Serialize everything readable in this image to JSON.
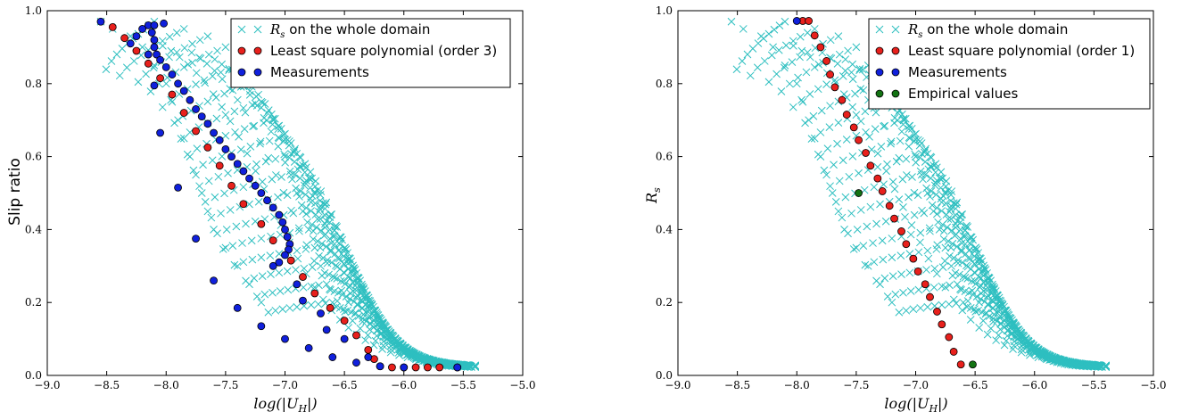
{
  "colors": {
    "cyan": "#2ebfc0",
    "red": "#e8201c",
    "blue": "#1020dc",
    "green": "#137313"
  },
  "chart_data": [
    {
      "type": "scatter",
      "xlabel": "log(|U_H|)",
      "ylabel": "Slip ratio",
      "xlim": [
        -9.0,
        -5.0
      ],
      "ylim": [
        0.0,
        1.0
      ],
      "xticks": [
        "-9.0",
        "-8.5",
        "-8.0",
        "-7.5",
        "-7.0",
        "-6.5",
        "-6.0",
        "-5.5",
        "-5.0"
      ],
      "yticks": [
        "0.0",
        "0.2",
        "0.4",
        "0.6",
        "0.8",
        "1.0"
      ],
      "legend": {
        "position": "top-right",
        "entries": [
          "R_s on the whole domain",
          "Least square polynomial (order 3)",
          "Measurements"
        ]
      },
      "series": [
        {
          "name": "R_s on the whole domain",
          "marker": "x",
          "color": "#2ebfc0",
          "curves": [
            {
              "x_left": -8.55,
              "x_knee": -8.1,
              "y_top": 0.97,
              "x_end": -5.4
            },
            {
              "x_left": -8.45,
              "x_knee": -7.85,
              "y_top": 0.95,
              "x_end": -5.4
            },
            {
              "x_left": -8.3,
              "x_knee": -7.65,
              "y_top": 0.93,
              "x_end": -5.4
            },
            {
              "x_left": -8.2,
              "x_knee": -7.5,
              "y_top": 0.9,
              "x_end": -5.4
            },
            {
              "x_left": -8.1,
              "x_knee": -7.4,
              "y_top": 0.85,
              "x_end": -5.4
            },
            {
              "x_left": -8.0,
              "x_knee": -7.3,
              "y_top": 0.8,
              "x_end": -5.4
            },
            {
              "x_left": -7.95,
              "x_knee": -7.2,
              "y_top": 0.75,
              "x_end": -5.4
            },
            {
              "x_left": -7.9,
              "x_knee": -7.1,
              "y_top": 0.7,
              "x_end": -5.4
            },
            {
              "x_left": -7.85,
              "x_knee": -7.05,
              "y_top": 0.65,
              "x_end": -5.4
            },
            {
              "x_left": -7.8,
              "x_knee": -7.0,
              "y_top": 0.6,
              "x_end": -5.4
            },
            {
              "x_left": -7.75,
              "x_knee": -6.95,
              "y_top": 0.55,
              "x_end": -5.4
            },
            {
              "x_left": -7.7,
              "x_knee": -6.9,
              "y_top": 0.5,
              "x_end": -5.4
            },
            {
              "x_left": -7.65,
              "x_knee": -6.85,
              "y_top": 0.45,
              "x_end": -5.4
            },
            {
              "x_left": -7.6,
              "x_knee": -6.8,
              "y_top": 0.4,
              "x_end": -5.4
            },
            {
              "x_left": -7.5,
              "x_knee": -6.75,
              "y_top": 0.35,
              "x_end": -5.4
            },
            {
              "x_left": -7.4,
              "x_knee": -6.7,
              "y_top": 0.3,
              "x_end": -5.4
            },
            {
              "x_left": -7.3,
              "x_knee": -6.65,
              "y_top": 0.25,
              "x_end": -5.4
            },
            {
              "x_left": -7.2,
              "x_knee": -6.6,
              "y_top": 0.2,
              "x_end": -5.4
            }
          ]
        },
        {
          "name": "Least square polynomial (order 3)",
          "marker": "o",
          "color": "#e8201c",
          "points": [
            [
              -8.45,
              0.955
            ],
            [
              -8.35,
              0.925
            ],
            [
              -8.25,
              0.89
            ],
            [
              -8.15,
              0.855
            ],
            [
              -8.05,
              0.815
            ],
            [
              -7.95,
              0.77
            ],
            [
              -7.85,
              0.72
            ],
            [
              -7.75,
              0.67
            ],
            [
              -7.65,
              0.625
            ],
            [
              -7.55,
              0.575
            ],
            [
              -7.45,
              0.52
            ],
            [
              -7.35,
              0.47
            ],
            [
              -7.2,
              0.415
            ],
            [
              -7.1,
              0.37
            ],
            [
              -6.95,
              0.315
            ],
            [
              -6.85,
              0.27
            ],
            [
              -6.75,
              0.225
            ],
            [
              -6.62,
              0.185
            ],
            [
              -6.5,
              0.15
            ],
            [
              -6.4,
              0.11
            ],
            [
              -6.3,
              0.07
            ],
            [
              -6.25,
              0.045
            ],
            [
              -6.2,
              0.025
            ],
            [
              -6.1,
              0.022
            ],
            [
              -6.0,
              0.022
            ],
            [
              -5.9,
              0.022
            ],
            [
              -5.8,
              0.022
            ],
            [
              -5.7,
              0.022
            ],
            [
              -5.55,
              0.022
            ]
          ]
        },
        {
          "name": "Measurements",
          "marker": "o",
          "color": "#1020dc",
          "points": [
            [
              -8.55,
              0.97
            ],
            [
              -8.15,
              0.96
            ],
            [
              -8.12,
              0.94
            ],
            [
              -8.1,
              0.92
            ],
            [
              -8.1,
              0.9
            ],
            [
              -8.08,
              0.88
            ],
            [
              -8.05,
              0.865
            ],
            [
              -8.0,
              0.845
            ],
            [
              -7.95,
              0.825
            ],
            [
              -7.9,
              0.8
            ],
            [
              -7.85,
              0.78
            ],
            [
              -7.8,
              0.755
            ],
            [
              -7.75,
              0.73
            ],
            [
              -7.7,
              0.71
            ],
            [
              -7.65,
              0.69
            ],
            [
              -7.6,
              0.665
            ],
            [
              -7.55,
              0.645
            ],
            [
              -7.5,
              0.62
            ],
            [
              -7.45,
              0.6
            ],
            [
              -7.4,
              0.58
            ],
            [
              -7.35,
              0.56
            ],
            [
              -7.3,
              0.54
            ],
            [
              -7.25,
              0.52
            ],
            [
              -7.2,
              0.5
            ],
            [
              -7.15,
              0.48
            ],
            [
              -7.1,
              0.46
            ],
            [
              -7.05,
              0.44
            ],
            [
              -7.02,
              0.42
            ],
            [
              -7.0,
              0.4
            ],
            [
              -6.98,
              0.38
            ],
            [
              -6.96,
              0.36
            ],
            [
              -6.97,
              0.345
            ],
            [
              -7.0,
              0.33
            ],
            [
              -7.05,
              0.31
            ],
            [
              -7.1,
              0.3
            ],
            [
              -8.1,
              0.96
            ],
            [
              -8.02,
              0.965
            ],
            [
              -8.2,
              0.95
            ],
            [
              -8.25,
              0.93
            ],
            [
              -8.3,
              0.91
            ],
            [
              -8.15,
              0.88
            ],
            [
              -8.1,
              0.795
            ],
            [
              -8.05,
              0.665
            ],
            [
              -7.9,
              0.515
            ],
            [
              -7.75,
              0.375
            ],
            [
              -7.6,
              0.26
            ],
            [
              -7.4,
              0.185
            ],
            [
              -7.2,
              0.135
            ],
            [
              -7.0,
              0.1
            ],
            [
              -6.8,
              0.075
            ],
            [
              -6.6,
              0.05
            ],
            [
              -6.4,
              0.035
            ],
            [
              -6.2,
              0.025
            ],
            [
              -6.0,
              0.022
            ],
            [
              -5.55,
              0.022
            ],
            [
              -6.3,
              0.05
            ],
            [
              -6.5,
              0.1
            ],
            [
              -6.7,
              0.17
            ],
            [
              -6.9,
              0.25
            ],
            [
              -6.85,
              0.205
            ],
            [
              -6.65,
              0.125
            ]
          ]
        }
      ]
    },
    {
      "type": "scatter",
      "xlabel": "log(|U_H|)",
      "ylabel": "R_s",
      "xlim": [
        -9.0,
        -5.0
      ],
      "ylim": [
        0.0,
        1.0
      ],
      "xticks": [
        "-9.0",
        "-8.5",
        "-8.0",
        "-7.5",
        "-7.0",
        "-6.5",
        "-6.0",
        "-5.5",
        "-5.0"
      ],
      "yticks": [
        "0.0",
        "0.2",
        "0.4",
        "0.6",
        "0.8",
        "1.0"
      ],
      "legend": {
        "position": "top-right",
        "entries": [
          "R_s on the whole domain",
          "Least square polynomial (order 1)",
          "Measurements",
          "Empirical values"
        ]
      },
      "series": [
        {
          "name": "R_s on the whole domain",
          "marker": "x",
          "color": "#2ebfc0",
          "curves": [
            {
              "x_left": -8.55,
              "x_knee": -8.1,
              "y_top": 0.97,
              "x_end": -5.4
            },
            {
              "x_left": -8.45,
              "x_knee": -7.85,
              "y_top": 0.95,
              "x_end": -5.4
            },
            {
              "x_left": -8.3,
              "x_knee": -7.65,
              "y_top": 0.93,
              "x_end": -5.4
            },
            {
              "x_left": -8.2,
              "x_knee": -7.5,
              "y_top": 0.9,
              "x_end": -5.4
            },
            {
              "x_left": -8.1,
              "x_knee": -7.4,
              "y_top": 0.85,
              "x_end": -5.4
            },
            {
              "x_left": -8.0,
              "x_knee": -7.3,
              "y_top": 0.8,
              "x_end": -5.4
            },
            {
              "x_left": -7.95,
              "x_knee": -7.2,
              "y_top": 0.75,
              "x_end": -5.4
            },
            {
              "x_left": -7.9,
              "x_knee": -7.1,
              "y_top": 0.7,
              "x_end": -5.4
            },
            {
              "x_left": -7.85,
              "x_knee": -7.05,
              "y_top": 0.65,
              "x_end": -5.4
            },
            {
              "x_left": -7.8,
              "x_knee": -7.0,
              "y_top": 0.6,
              "x_end": -5.4
            },
            {
              "x_left": -7.75,
              "x_knee": -6.95,
              "y_top": 0.55,
              "x_end": -5.4
            },
            {
              "x_left": -7.7,
              "x_knee": -6.9,
              "y_top": 0.5,
              "x_end": -5.4
            },
            {
              "x_left": -7.65,
              "x_knee": -6.85,
              "y_top": 0.45,
              "x_end": -5.4
            },
            {
              "x_left": -7.6,
              "x_knee": -6.8,
              "y_top": 0.4,
              "x_end": -5.4
            },
            {
              "x_left": -7.5,
              "x_knee": -6.75,
              "y_top": 0.35,
              "x_end": -5.4
            },
            {
              "x_left": -7.4,
              "x_knee": -6.7,
              "y_top": 0.3,
              "x_end": -5.4
            },
            {
              "x_left": -7.3,
              "x_knee": -6.65,
              "y_top": 0.25,
              "x_end": -5.4
            },
            {
              "x_left": -7.2,
              "x_knee": -6.6,
              "y_top": 0.2,
              "x_end": -5.4
            }
          ]
        },
        {
          "name": "Least square polynomial (order 1)",
          "marker": "o",
          "color": "#e8201c",
          "points": [
            [
              -7.95,
              0.972
            ],
            [
              -7.9,
              0.972
            ],
            [
              -7.85,
              0.932
            ],
            [
              -7.8,
              0.9
            ],
            [
              -7.75,
              0.862
            ],
            [
              -7.72,
              0.825
            ],
            [
              -7.68,
              0.79
            ],
            [
              -7.62,
              0.755
            ],
            [
              -7.58,
              0.715
            ],
            [
              -7.52,
              0.68
            ],
            [
              -7.48,
              0.645
            ],
            [
              -7.42,
              0.61
            ],
            [
              -7.38,
              0.575
            ],
            [
              -7.32,
              0.54
            ],
            [
              -7.28,
              0.505
            ],
            [
              -7.22,
              0.465
            ],
            [
              -7.18,
              0.43
            ],
            [
              -7.12,
              0.395
            ],
            [
              -7.08,
              0.36
            ],
            [
              -7.02,
              0.32
            ],
            [
              -6.98,
              0.285
            ],
            [
              -6.92,
              0.25
            ],
            [
              -6.88,
              0.215
            ],
            [
              -6.82,
              0.175
            ],
            [
              -6.78,
              0.14
            ],
            [
              -6.72,
              0.105
            ],
            [
              -6.68,
              0.065
            ],
            [
              -6.62,
              0.03
            ]
          ]
        },
        {
          "name": "Measurements",
          "marker": "o",
          "color": "#1020dc",
          "points": [
            [
              -8.0,
              0.972
            ]
          ]
        },
        {
          "name": "Empirical values",
          "marker": "o",
          "color": "#137313",
          "points": [
            [
              -7.48,
              0.5
            ],
            [
              -6.52,
              0.03
            ]
          ]
        }
      ]
    }
  ]
}
